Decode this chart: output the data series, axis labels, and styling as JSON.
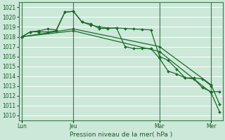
{
  "title": "Pression niveau de la mer( hPa )",
  "bg_color": "#cce8d8",
  "grid_color": "#b0d8c0",
  "plot_bg": "#cce8d8",
  "line_color": "#1a6b2a",
  "ylim": [
    1009.5,
    1021.5
  ],
  "yticks": [
    1010,
    1011,
    1012,
    1013,
    1014,
    1015,
    1016,
    1017,
    1018,
    1019,
    1020,
    1021
  ],
  "xlim": [
    -1,
    70
  ],
  "vlines_x": [
    0,
    18,
    48,
    66
  ],
  "xtick_labels": [
    "Lun",
    "Jeu",
    "Mar",
    "Mer"
  ],
  "xtick_pos": [
    0,
    18,
    48,
    66
  ],
  "series1_x": [
    0,
    3,
    6,
    9,
    12,
    15,
    18,
    21,
    24,
    27,
    30,
    33,
    36,
    39,
    42,
    45,
    48,
    51,
    54,
    57,
    60,
    63,
    66
  ],
  "series1_y": [
    1018.0,
    1018.5,
    1018.6,
    1018.8,
    1018.7,
    1020.5,
    1020.6,
    1019.5,
    1019.3,
    1018.85,
    1018.85,
    1018.9,
    1018.85,
    1018.8,
    1018.75,
    1018.7,
    1016.0,
    1015.6,
    1014.7,
    1013.8,
    1013.8,
    1013.7,
    1013.0
  ],
  "series2_x": [
    0,
    3,
    6,
    9,
    12,
    15,
    18,
    21,
    24,
    27,
    30,
    33,
    36,
    39,
    42,
    45,
    48,
    51,
    54,
    57,
    60,
    63,
    66,
    69
  ],
  "series2_y": [
    1018.0,
    1018.5,
    1018.5,
    1018.5,
    1018.6,
    1020.5,
    1020.6,
    1019.5,
    1019.2,
    1019.0,
    1018.9,
    1018.9,
    1017.0,
    1016.8,
    1016.8,
    1016.8,
    1015.8,
    1014.5,
    1014.2,
    1013.8,
    1013.7,
    1012.8,
    1012.4,
    1012.4
  ],
  "series3_x": [
    0,
    18,
    48,
    66,
    69
  ],
  "series3_y": [
    1018.0,
    1018.6,
    1016.5,
    1012.3,
    1010.3
  ],
  "series4_x": [
    0,
    18,
    48,
    66,
    69
  ],
  "series4_y": [
    1018.0,
    1018.8,
    1017.0,
    1013.1,
    1011.1
  ]
}
